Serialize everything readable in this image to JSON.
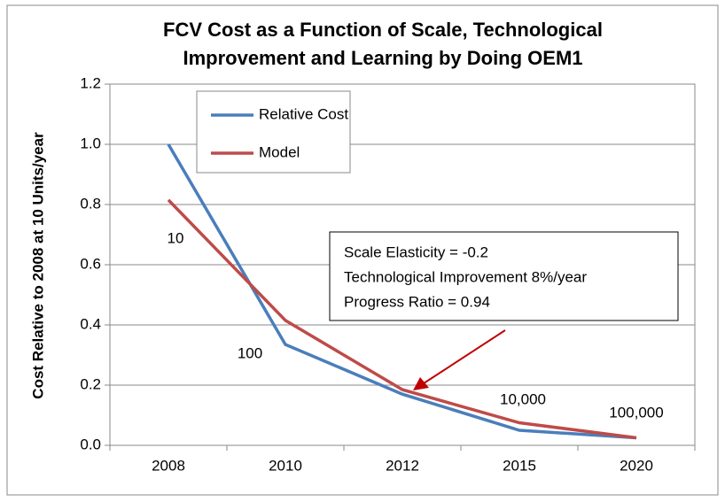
{
  "chart_data": {
    "type": "line",
    "title": [
      "FCV Cost as a Function of Scale, Technological",
      "Improvement and Learning by Doing OEM1"
    ],
    "y_label": "Cost Relative to 2008 at 10 Units/year",
    "categories": [
      "2008",
      "2010",
      "2012",
      "2015",
      "2020"
    ],
    "series": [
      {
        "name": "Relative Cost",
        "color": "#4a7ebb",
        "values": [
          1.0,
          0.335,
          0.17,
          0.05,
          0.025
        ]
      },
      {
        "name": "Model",
        "color": "#be4b48",
        "values": [
          0.815,
          0.415,
          0.185,
          0.075,
          0.025
        ]
      }
    ],
    "ylim": [
      0,
      1.2
    ],
    "yticks": [
      {
        "value": 0,
        "label": "0.0"
      },
      0.2,
      0.4,
      0.6,
      0.8,
      {
        "value": 1,
        "label": "1.0"
      },
      1.2
    ],
    "grid": true,
    "legend": "top-left",
    "point_labels": [
      "10",
      "100",
      "10,000",
      "100,000"
    ],
    "textbox": [
      "Scale Elasticity = -0.2",
      "Technological Improvement 8%/year",
      "Progress Ratio = 0.94"
    ]
  }
}
